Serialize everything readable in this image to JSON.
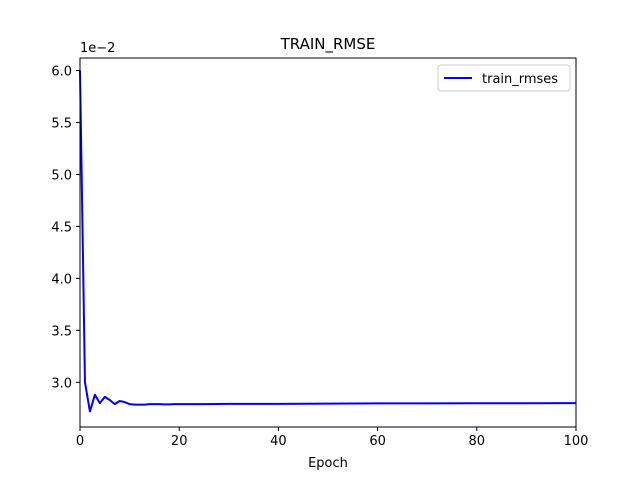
{
  "chart_data": {
    "type": "line",
    "title": "TRAIN_RMSE",
    "xlabel": "Epoch",
    "ylabel": "",
    "y_offset_label": "1e−2",
    "xlim": [
      0,
      100
    ],
    "ylim": [
      2.57,
      6.12
    ],
    "x_ticks": [
      0,
      20,
      40,
      60,
      80,
      100
    ],
    "x_tick_labels": [
      "0",
      "20",
      "40",
      "60",
      "80",
      "100"
    ],
    "y_ticks": [
      3.0,
      3.5,
      4.0,
      4.5,
      5.0,
      5.5,
      6.0
    ],
    "y_tick_labels": [
      "3.0",
      "3.5",
      "4.0",
      "4.5",
      "5.0",
      "5.5",
      "6.0"
    ],
    "grid": false,
    "legend_position": "upper-right",
    "series": [
      {
        "name": "train_rmses",
        "color": "#0000ff",
        "x": [
          0,
          1,
          2,
          3,
          4,
          5,
          6,
          7,
          8,
          9,
          10,
          11,
          12,
          13,
          14,
          15,
          16,
          17,
          18,
          19,
          20,
          25,
          30,
          40,
          50,
          60,
          70,
          80,
          90,
          100
        ],
        "values": [
          6.0,
          3.0,
          2.72,
          2.88,
          2.8,
          2.86,
          2.83,
          2.79,
          2.82,
          2.81,
          2.79,
          2.785,
          2.785,
          2.785,
          2.79,
          2.79,
          2.79,
          2.788,
          2.788,
          2.79,
          2.79,
          2.79,
          2.792,
          2.793,
          2.795,
          2.797,
          2.797,
          2.798,
          2.799,
          2.8
        ]
      }
    ]
  }
}
